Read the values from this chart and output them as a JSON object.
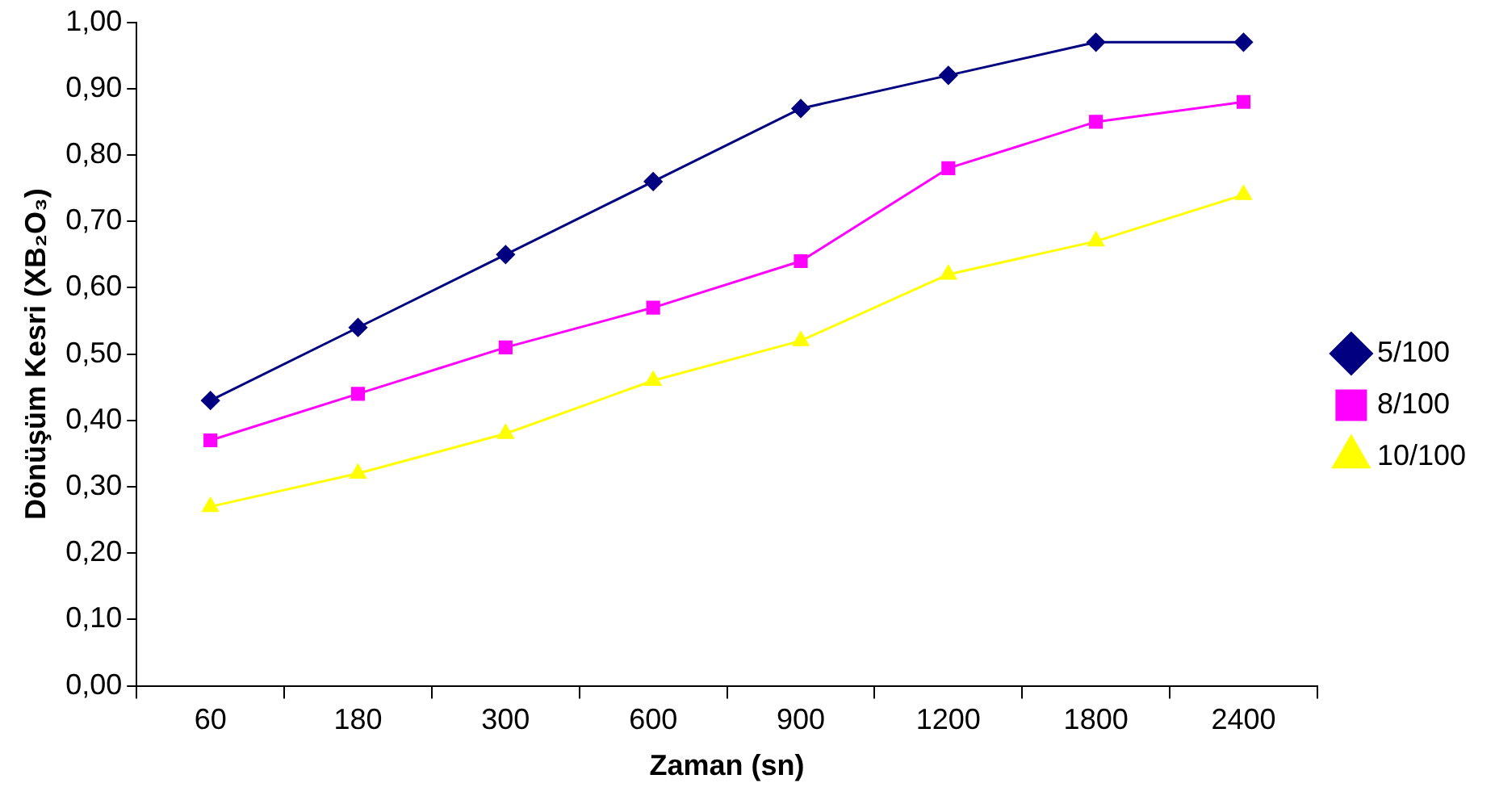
{
  "chart_data": {
    "type": "line",
    "xlabel": "Zaman (sn)",
    "ylabel": "Dönüşüm Kesri (XB₂O₃)",
    "categories": [
      "60",
      "180",
      "300",
      "600",
      "900",
      "1200",
      "1800",
      "2400"
    ],
    "ylim": [
      0,
      1
    ],
    "yticks": [
      {
        "value": 0,
        "label": "0,00"
      },
      {
        "value": 0.1,
        "label": "0,10"
      },
      {
        "value": 0.2,
        "label": "0,20"
      },
      {
        "value": 0.3,
        "label": "0,30"
      },
      {
        "value": 0.4,
        "label": "0,40"
      },
      {
        "value": 0.5,
        "label": "0,50"
      },
      {
        "value": 0.6,
        "label": "0,60"
      },
      {
        "value": 0.7,
        "label": "0,70"
      },
      {
        "value": 0.8,
        "label": "0,80"
      },
      {
        "value": 0.9,
        "label": "0,90"
      },
      {
        "value": 1,
        "label": "1,00"
      }
    ],
    "grid": false,
    "legend": "right",
    "line_style": "solid",
    "series": [
      {
        "name": "5/100",
        "color": "#000080",
        "marker": "diamond",
        "values": [
          0.43,
          0.54,
          0.65,
          0.76,
          0.87,
          0.92,
          0.97,
          0.97
        ]
      },
      {
        "name": "8/100",
        "color": "#ff00ff",
        "marker": "square",
        "values": [
          0.37,
          0.44,
          0.51,
          0.57,
          0.64,
          0.78,
          0.85,
          0.88
        ]
      },
      {
        "name": "10/100",
        "color": "#ffff00",
        "marker": "triangle",
        "values": [
          0.27,
          0.32,
          0.38,
          0.46,
          0.52,
          0.62,
          0.67,
          0.74
        ]
      }
    ]
  }
}
